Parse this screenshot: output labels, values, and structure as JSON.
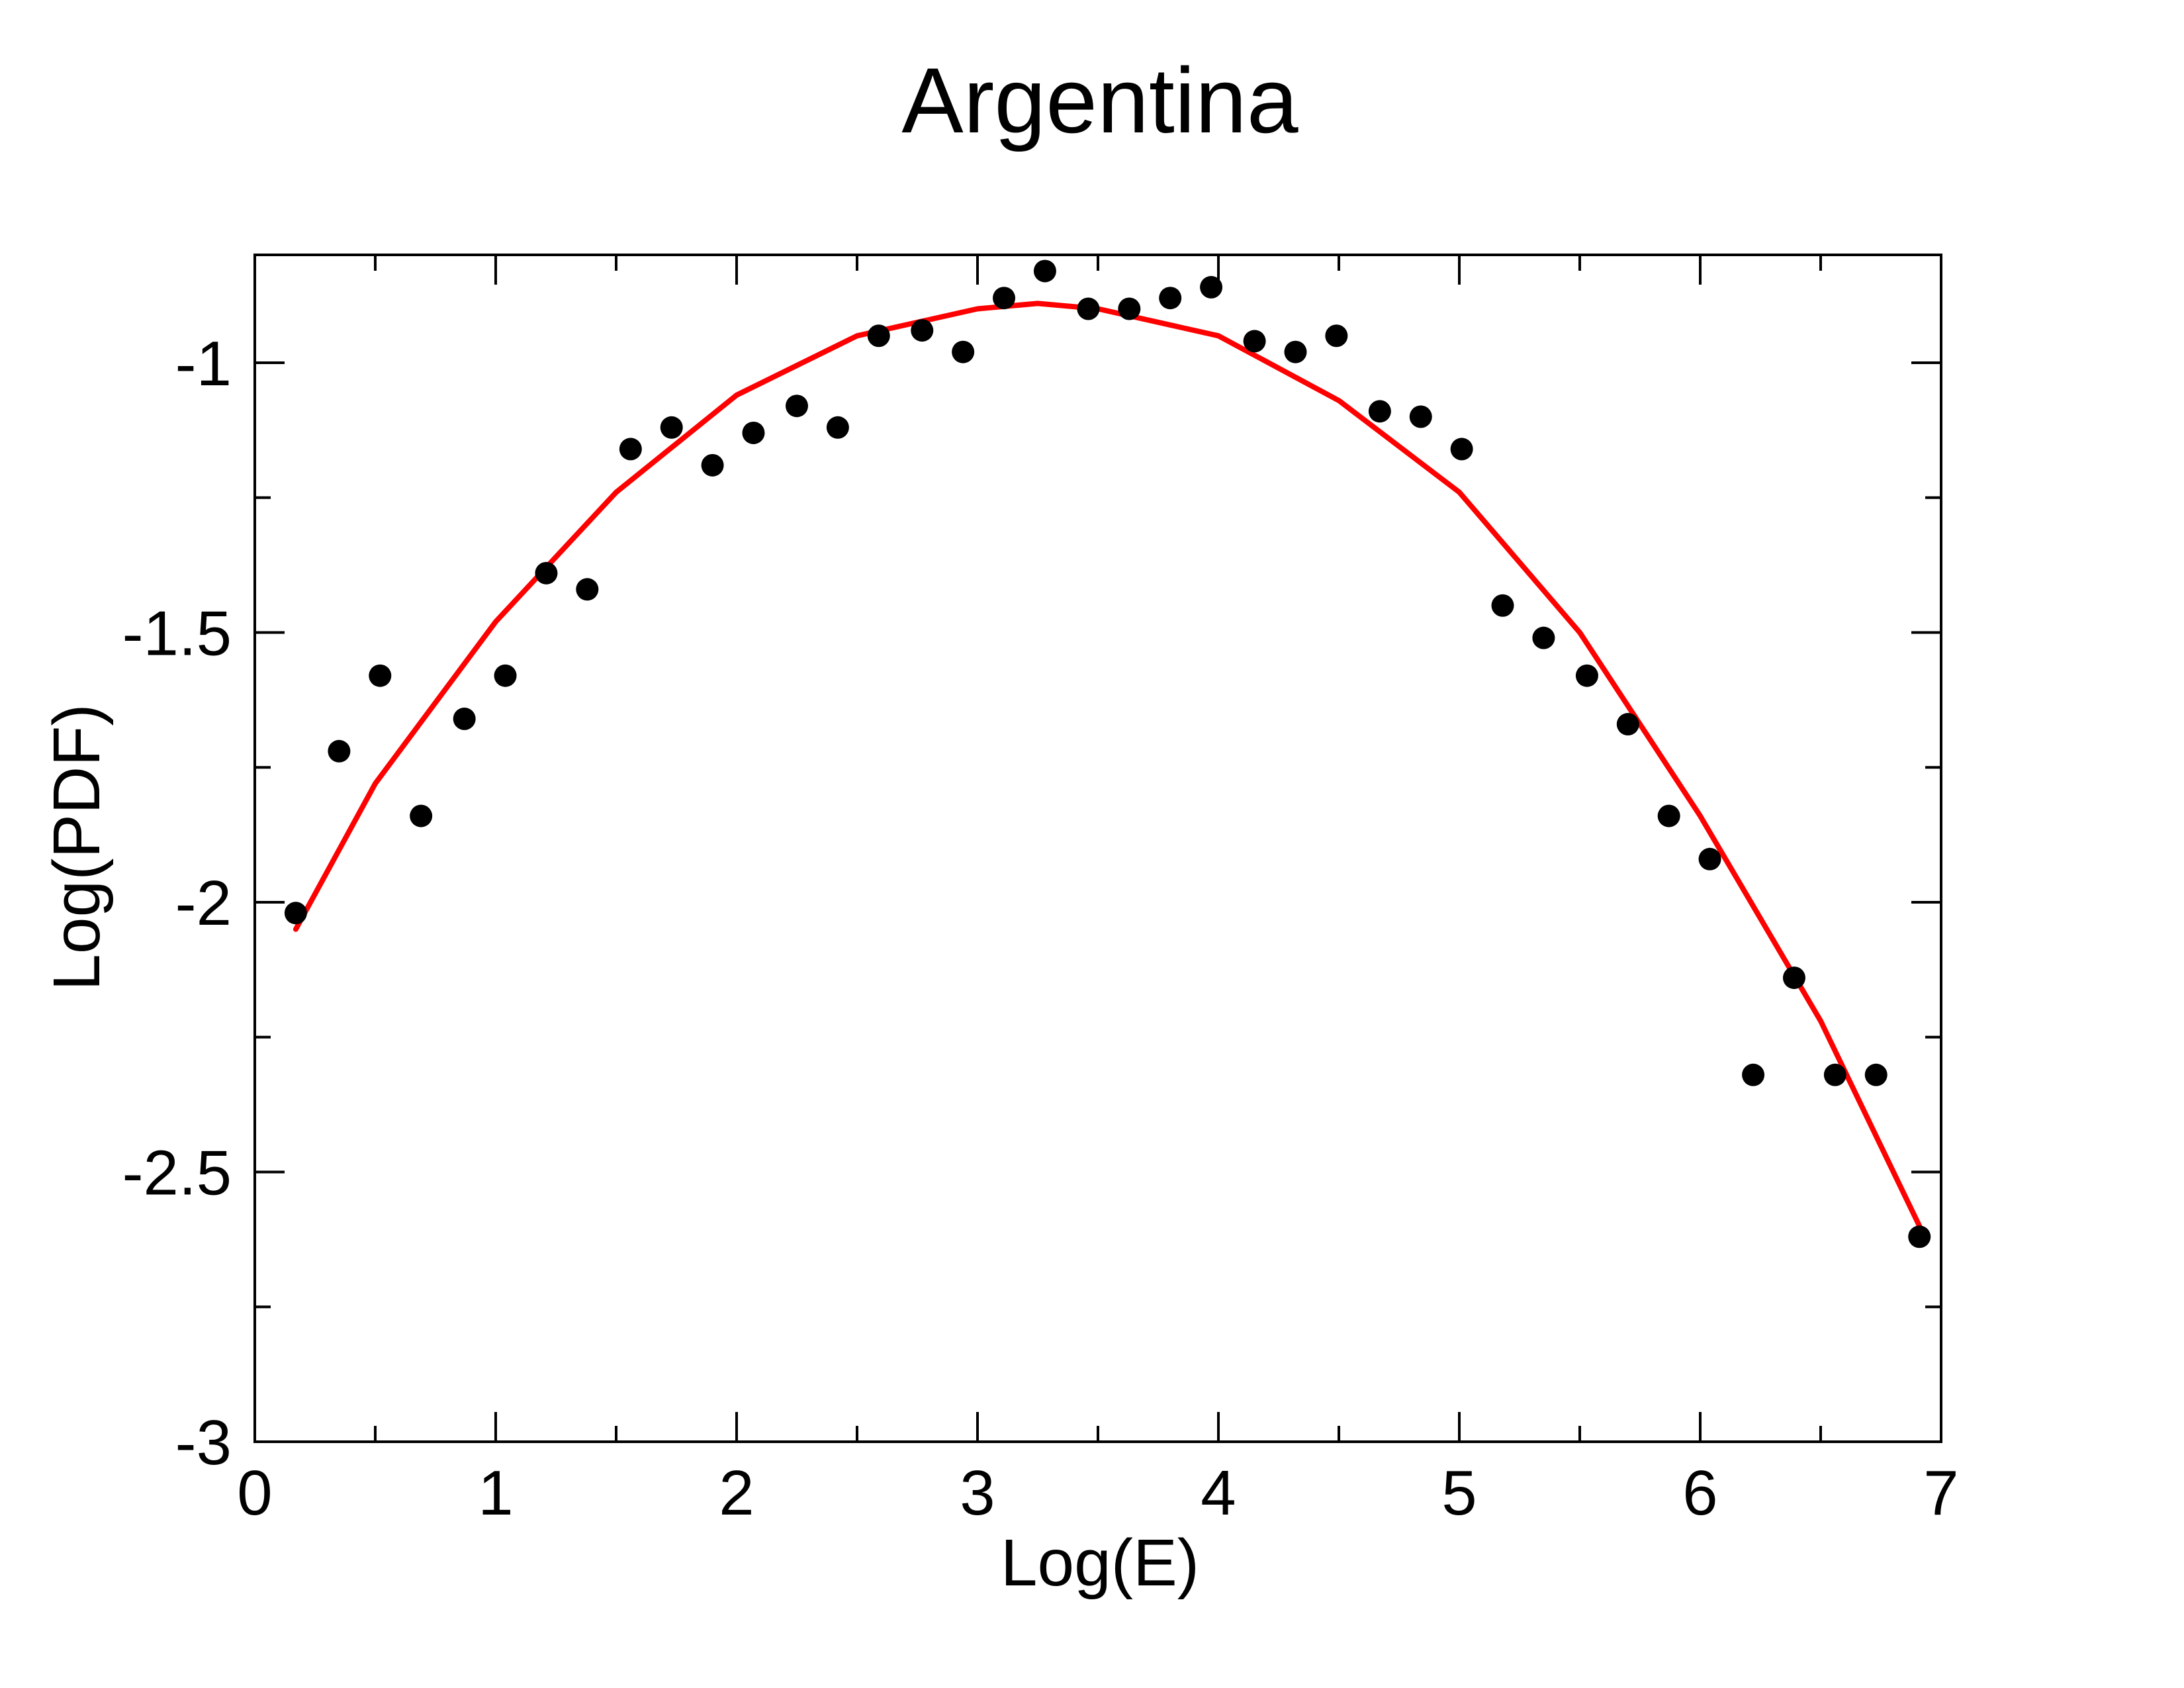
{
  "chart_data": {
    "type": "scatter",
    "title": "Argentina",
    "xlabel": "Log(E)",
    "ylabel": "Log(PDF)",
    "xlim": [
      0,
      7
    ],
    "ylim": [
      -3,
      -0.8
    ],
    "x_ticks": [
      0,
      1,
      2,
      3,
      4,
      5,
      6,
      7
    ],
    "x_tick_labels": [
      "0",
      "1",
      "2",
      "3",
      "4",
      "5",
      "6",
      "7"
    ],
    "x_minor_ticks": [
      0.5,
      1.5,
      2.5,
      3.5,
      4.5,
      5.5,
      6.5
    ],
    "y_ticks": [
      -3,
      -2.5,
      -2,
      -1.5,
      -1
    ],
    "y_tick_labels": [
      "-3",
      "-2.5",
      "-2",
      "-1.5",
      "-1"
    ],
    "y_minor_ticks": [
      -2.75,
      -2.25,
      -1.75,
      -1.25
    ],
    "grid": false,
    "legend": "none",
    "series": [
      {
        "kind": "points",
        "color": "#000000",
        "x": [
          0.17,
          0.35,
          0.52,
          0.69,
          0.87,
          1.04,
          1.21,
          1.38,
          1.56,
          1.73,
          1.9,
          2.07,
          2.25,
          2.42,
          2.59,
          2.77,
          2.94,
          3.11,
          3.28,
          3.46,
          3.63,
          3.8,
          3.97,
          4.15,
          4.32,
          4.49,
          4.67,
          4.84,
          5.01,
          5.18,
          5.35,
          5.53,
          5.7,
          5.87,
          6.04,
          6.22,
          6.39,
          6.56,
          6.73,
          6.91
        ],
        "y": [
          -2.02,
          -1.72,
          -1.58,
          -1.84,
          -1.66,
          -1.58,
          -1.39,
          -1.42,
          -1.16,
          -1.12,
          -1.19,
          -1.13,
          -1.08,
          -1.12,
          -0.95,
          -0.94,
          -0.98,
          -0.88,
          -0.83,
          -0.9,
          -0.9,
          -0.88,
          -0.86,
          -0.96,
          -0.98,
          -0.95,
          -1.09,
          -1.1,
          -1.16,
          -1.45,
          -1.51,
          -1.58,
          -1.67,
          -1.84,
          -1.92,
          -2.32,
          -2.14,
          -2.32,
          -2.32,
          -2.62
        ]
      },
      {
        "kind": "curve",
        "color": "#ff0000",
        "x": [
          0.17,
          0.5,
          1.0,
          1.5,
          2.0,
          2.5,
          3.0,
          3.25,
          3.5,
          4.0,
          4.5,
          5.0,
          5.5,
          6.0,
          6.5,
          6.91
        ],
        "y": [
          -2.05,
          -1.78,
          -1.48,
          -1.24,
          -1.06,
          -0.95,
          -0.9,
          -0.89,
          -0.9,
          -0.95,
          -1.07,
          -1.24,
          -1.5,
          -1.84,
          -2.22,
          -2.6
        ]
      }
    ]
  }
}
